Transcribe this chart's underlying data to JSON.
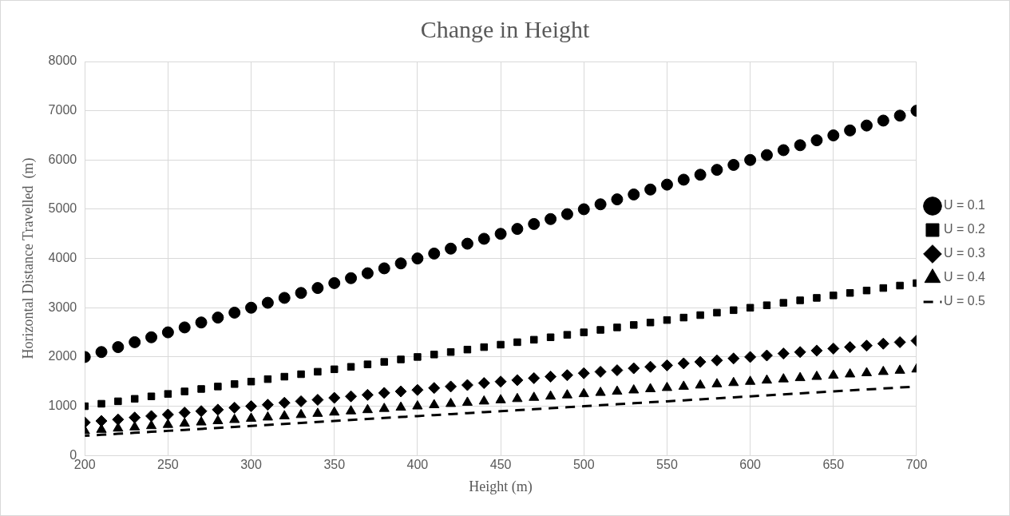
{
  "chart_data": {
    "type": "scatter",
    "title": "Change in Height",
    "xlabel": "Height (m)",
    "ylabel": "Horizontal Distance Travelled  (m)",
    "x": [
      200,
      210,
      220,
      230,
      240,
      250,
      260,
      270,
      280,
      290,
      300,
      310,
      320,
      330,
      340,
      350,
      360,
      370,
      380,
      390,
      400,
      410,
      420,
      430,
      440,
      450,
      460,
      470,
      480,
      490,
      500,
      510,
      520,
      530,
      540,
      550,
      560,
      570,
      580,
      590,
      600,
      610,
      620,
      630,
      640,
      650,
      660,
      670,
      680,
      690,
      700
    ],
    "series": [
      {
        "name": "U = 0.1",
        "color": "#000000",
        "marker": "circle",
        "values": [
          2000,
          2100,
          2200,
          2300,
          2400,
          2500,
          2600,
          2700,
          2800,
          2900,
          3000,
          3100,
          3200,
          3300,
          3400,
          3500,
          3600,
          3700,
          3800,
          3900,
          4000,
          4100,
          4200,
          4300,
          4400,
          4500,
          4600,
          4700,
          4800,
          4900,
          5000,
          5100,
          5200,
          5300,
          5400,
          5500,
          5600,
          5700,
          5800,
          5900,
          6000,
          6100,
          6200,
          6300,
          6400,
          6500,
          6600,
          6700,
          6800,
          6900,
          7000
        ]
      },
      {
        "name": "U = 0.2",
        "color": "#000000",
        "marker": "square",
        "values": [
          1000,
          1050,
          1100,
          1150,
          1200,
          1250,
          1300,
          1350,
          1400,
          1450,
          1500,
          1550,
          1600,
          1650,
          1700,
          1750,
          1800,
          1850,
          1900,
          1950,
          2000,
          2050,
          2100,
          2150,
          2200,
          2250,
          2300,
          2350,
          2400,
          2450,
          2500,
          2550,
          2600,
          2650,
          2700,
          2750,
          2800,
          2850,
          2900,
          2950,
          3000,
          3050,
          3100,
          3150,
          3200,
          3250,
          3300,
          3350,
          3400,
          3450,
          3500
        ]
      },
      {
        "name": "U = 0.3",
        "color": "#000000",
        "marker": "diamond",
        "values": [
          670,
          700,
          730,
          770,
          800,
          830,
          870,
          900,
          930,
          970,
          1000,
          1030,
          1070,
          1100,
          1130,
          1170,
          1200,
          1230,
          1270,
          1300,
          1330,
          1370,
          1400,
          1430,
          1470,
          1500,
          1530,
          1570,
          1600,
          1630,
          1670,
          1700,
          1730,
          1770,
          1800,
          1830,
          1870,
          1900,
          1930,
          1970,
          2000,
          2030,
          2070,
          2100,
          2130,
          2170,
          2200,
          2230,
          2270,
          2300,
          2330
        ]
      },
      {
        "name": "U = 0.4",
        "color": "#000000",
        "marker": "triangle",
        "values": [
          500,
          525,
          550,
          575,
          600,
          625,
          650,
          675,
          700,
          725,
          750,
          775,
          800,
          825,
          850,
          875,
          900,
          925,
          950,
          975,
          1000,
          1025,
          1050,
          1075,
          1100,
          1125,
          1150,
          1175,
          1200,
          1225,
          1250,
          1275,
          1300,
          1325,
          1350,
          1375,
          1400,
          1425,
          1450,
          1475,
          1500,
          1525,
          1550,
          1575,
          1600,
          1625,
          1650,
          1675,
          1700,
          1725,
          1750
        ]
      },
      {
        "name": "U = 0.5",
        "color": "#000000",
        "type": "line",
        "marker": "none",
        "line_style": "dashed",
        "values": [
          400,
          420,
          440,
          460,
          480,
          500,
          520,
          540,
          560,
          580,
          600,
          620,
          640,
          660,
          680,
          700,
          720,
          740,
          760,
          780,
          800,
          820,
          840,
          860,
          880,
          900,
          920,
          940,
          960,
          980,
          1000,
          1020,
          1040,
          1060,
          1080,
          1100,
          1120,
          1140,
          1160,
          1180,
          1200,
          1220,
          1240,
          1260,
          1280,
          1300,
          1320,
          1340,
          1360,
          1380,
          1400
        ]
      }
    ],
    "xlim": [
      200,
      700
    ],
    "xticks": [
      200,
      250,
      300,
      350,
      400,
      450,
      500,
      550,
      600,
      650,
      700
    ],
    "ylim": [
      0,
      8000
    ],
    "yticks": [
      0,
      1000,
      2000,
      3000,
      4000,
      5000,
      6000,
      7000,
      8000
    ],
    "grid": true,
    "legend": "right"
  }
}
